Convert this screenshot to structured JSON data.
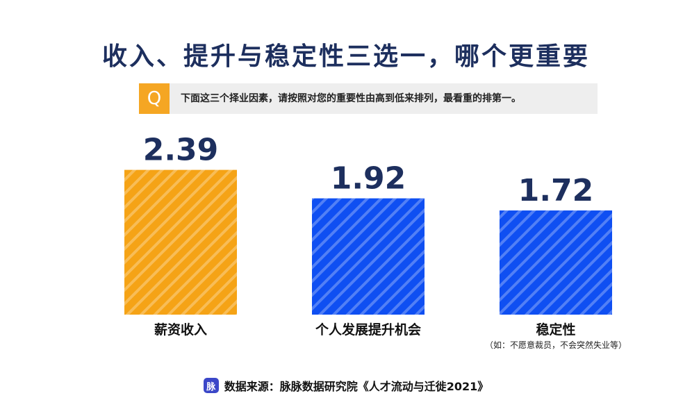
{
  "title": "收入、提升与稳定性三选一，哪个更重要",
  "question": {
    "icon": "Q",
    "text": "下面这三个择业因素，请按照对您的重要性由高到低来排列，最看重的排第一。"
  },
  "chart_data": {
    "type": "bar",
    "categories": [
      "薪资收入",
      "个人发展提升机会",
      "稳定性"
    ],
    "values": [
      2.39,
      1.92,
      1.72
    ],
    "value_labels": [
      "2.39",
      "1.92",
      "1.72"
    ],
    "notes": [
      "",
      "",
      "（如：不愿意裁员，不会突然失业等）"
    ],
    "colors": [
      "#f5a316",
      "#0f4ff2",
      "#0f4ff2"
    ],
    "ylim": [
      0,
      2.5
    ],
    "grid": false
  },
  "source": {
    "logo": "脉",
    "text": "数据来源：脉脉数据研究院《人才流动与迁徙2021》"
  }
}
